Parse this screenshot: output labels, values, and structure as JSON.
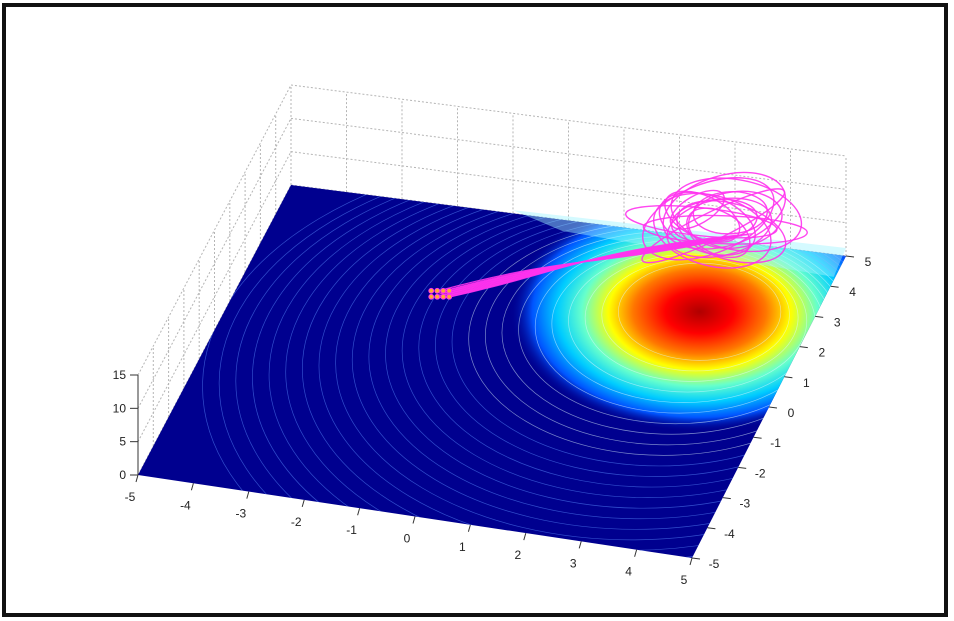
{
  "chart_data": {
    "type": "surface",
    "title": "",
    "xlabel": "",
    "ylabel": "",
    "zlabel": "",
    "xlim": [
      -5,
      5
    ],
    "ylim": [
      -5,
      5
    ],
    "zlim": [
      0,
      15
    ],
    "grid": true,
    "x_ticks": [
      "-5",
      "-4",
      "-3",
      "-2",
      "-1",
      "0",
      "1",
      "2",
      "3",
      "4",
      "5"
    ],
    "y_ticks": [
      "-5",
      "-4",
      "-3",
      "-2",
      "-1",
      "0",
      "1",
      "2",
      "3",
      "4",
      "5"
    ],
    "z_ticks": [
      "0",
      "5",
      "10",
      "15"
    ],
    "colormap": "jet",
    "surface": {
      "description_values": "single peak",
      "peak": {
        "x": 3.0,
        "y": 4.0,
        "z": 11
      },
      "spread": 1.7
    },
    "trajectories": {
      "color": "#ff33ee",
      "start": {
        "x": -1.5,
        "y": 2.0
      },
      "end": {
        "x": 3.0,
        "y": 4.5
      }
    }
  }
}
